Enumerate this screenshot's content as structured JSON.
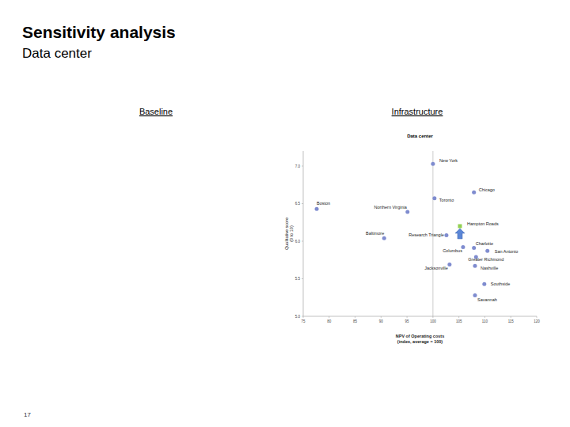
{
  "page": {
    "title": "Sensitivity analysis",
    "subtitle": "Data center",
    "page_number": "17",
    "panels": [
      "Baseline",
      "Infrastructure"
    ]
  },
  "chart_data": {
    "type": "scatter",
    "title": "Data center",
    "xlabel": [
      "NPV of Operating costs",
      "(index, average = 100)"
    ],
    "ylabel": [
      "Qualitative score",
      "(0 to 10)"
    ],
    "xlim": [
      75,
      120
    ],
    "xticks": [
      75,
      80,
      85,
      90,
      95,
      100,
      105,
      110,
      115,
      120
    ],
    "ylim": [
      5.0,
      7.2
    ],
    "yticks": [
      {
        "value": 5.0,
        "label": "5.0"
      },
      {
        "value": 5.5,
        "label": "5.5"
      },
      {
        "value": 6.0,
        "label": "6.0"
      },
      {
        "value": 6.5,
        "label": "6.5"
      },
      {
        "value": 7.0,
        "label": "7.0"
      }
    ],
    "reference_x": 100,
    "grid": false,
    "series": [
      {
        "color": "#7f8ccf",
        "marker": "circle",
        "labels": [
          "New York",
          "Chicago",
          "Toronto",
          "Boston",
          "Northern Virginia",
          "Research Triangle",
          "Baltimore",
          "Columbus",
          "Charlotte",
          "San Antonio",
          "Greater Richmond",
          "Jacksonville",
          "Nashville",
          "Southside",
          "Savannah"
        ],
        "x": [
          100.0,
          107.9,
          100.3,
          77.6,
          95.1,
          102.6,
          90.6,
          105.8,
          107.9,
          110.5,
          108.3,
          103.2,
          108.1,
          109.9,
          108.1
        ],
        "values": [
          7.03,
          6.65,
          6.57,
          6.43,
          6.39,
          6.08,
          6.04,
          5.92,
          5.91,
          5.87,
          5.79,
          5.69,
          5.67,
          5.43,
          5.28
        ]
      },
      {
        "color": "#92d050",
        "marker": "square",
        "labels": [
          "Hampton Roads"
        ],
        "x": [
          105.2
        ],
        "values": [
          6.2
        ]
      }
    ]
  }
}
